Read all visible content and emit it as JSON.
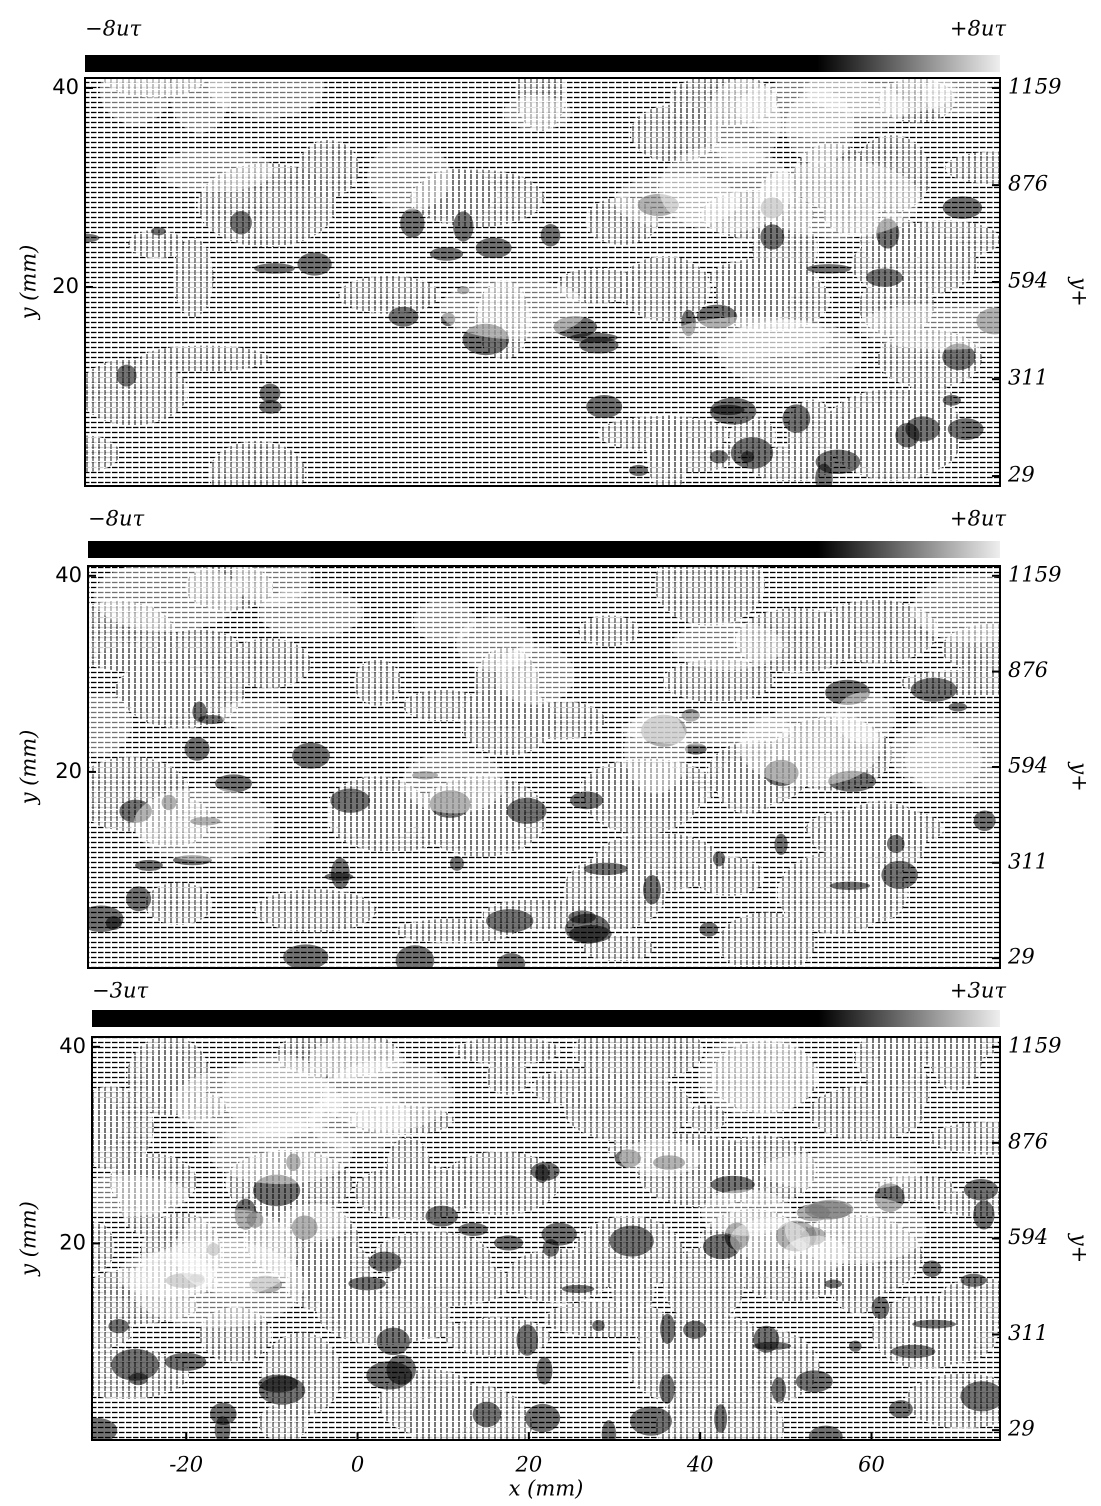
{
  "chart_data": [
    {
      "type": "quiver",
      "colorbar_labels": [
        "−8uτ",
        "+8uτ"
      ],
      "ylabel": "y (mm)",
      "y2label": "y+",
      "ylim": [
        0,
        41
      ],
      "yticks": [
        20,
        40
      ],
      "y2lim": [
        0,
        1188
      ],
      "y2ticks": [
        29,
        311,
        594,
        876,
        1159
      ]
    },
    {
      "type": "quiver",
      "colorbar_labels": [
        "−8uτ",
        "+8uτ"
      ],
      "ylabel": "y (mm)",
      "y2label": "y+",
      "ylim": [
        0,
        41
      ],
      "yticks": [
        20,
        40
      ],
      "y2lim": [
        0,
        1188
      ],
      "y2ticks": [
        29,
        311,
        594,
        876,
        1159
      ]
    },
    {
      "type": "quiver",
      "colorbar_labels": [
        "−3uτ",
        "+3uτ"
      ],
      "ylabel": "y (mm)",
      "y2label": "y+",
      "ylim": [
        0,
        41
      ],
      "yticks": [
        20,
        40
      ],
      "y2lim": [
        0,
        1188
      ],
      "y2ticks": [
        29,
        311,
        594,
        876,
        1159
      ],
      "xlabel": "x (mm)",
      "xlim": [
        -31,
        75
      ],
      "xticks": [
        -20,
        0,
        20,
        40,
        60
      ]
    }
  ]
}
